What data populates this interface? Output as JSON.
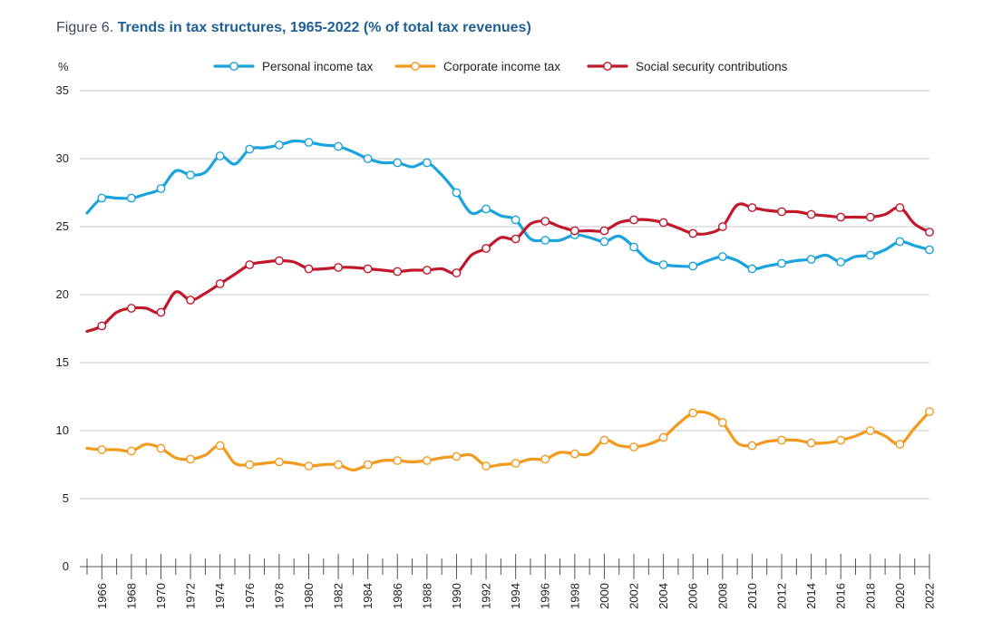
{
  "figure": {
    "label": "Figure 6.",
    "title": "Trends in tax structures, 1965-2022 (% of total tax revenues)"
  },
  "chart_data": {
    "type": "line",
    "title": "Trends in tax structures, 1965-2022 (% of total tax revenues)",
    "ylabel": "%",
    "xlabel": "",
    "ylim": [
      0,
      35
    ],
    "yticks": [
      0,
      5,
      10,
      15,
      20,
      25,
      30,
      35
    ],
    "xlim": [
      1965,
      2022
    ],
    "xticks": [
      1966,
      1968,
      1970,
      1972,
      1974,
      1976,
      1978,
      1980,
      1982,
      1984,
      1986,
      1988,
      1990,
      1992,
      1994,
      1996,
      1998,
      2000,
      2002,
      2004,
      2006,
      2008,
      2010,
      2012,
      2014,
      2016,
      2018,
      2020,
      2022
    ],
    "grid": "horizontal",
    "legend": "top",
    "x": [
      1965,
      1966,
      1967,
      1968,
      1969,
      1970,
      1971,
      1972,
      1973,
      1974,
      1975,
      1976,
      1977,
      1978,
      1979,
      1980,
      1981,
      1982,
      1983,
      1984,
      1985,
      1986,
      1987,
      1988,
      1989,
      1990,
      1991,
      1992,
      1993,
      1994,
      1995,
      1996,
      1997,
      1998,
      1999,
      2000,
      2001,
      2002,
      2003,
      2004,
      2005,
      2006,
      2007,
      2008,
      2009,
      2010,
      2011,
      2012,
      2013,
      2014,
      2015,
      2016,
      2017,
      2018,
      2019,
      2020,
      2021,
      2022
    ],
    "markers_every": 2,
    "series": [
      {
        "name": "Personal income tax",
        "color": "#1aa3dc",
        "values": [
          26.0,
          27.1,
          27.1,
          27.1,
          27.4,
          27.8,
          29.1,
          28.8,
          29.0,
          30.2,
          29.6,
          30.7,
          30.8,
          31.0,
          31.3,
          31.2,
          31.0,
          30.9,
          30.5,
          30.0,
          29.7,
          29.7,
          29.4,
          29.7,
          28.8,
          27.5,
          26.0,
          26.3,
          25.8,
          25.5,
          24.1,
          24.0,
          24.0,
          24.4,
          24.2,
          23.9,
          24.3,
          23.5,
          22.5,
          22.2,
          22.1,
          22.1,
          22.5,
          22.8,
          22.5,
          21.9,
          22.1,
          22.3,
          22.5,
          22.6,
          22.9,
          22.4,
          22.8,
          22.9,
          23.3,
          23.9,
          23.6,
          23.3
        ]
      },
      {
        "name": "Corporate income tax",
        "color": "#f29a1d",
        "values": [
          8.7,
          8.6,
          8.6,
          8.5,
          9.0,
          8.7,
          8.0,
          7.9,
          8.2,
          8.9,
          7.6,
          7.5,
          7.6,
          7.7,
          7.6,
          7.4,
          7.5,
          7.5,
          7.1,
          7.5,
          7.8,
          7.8,
          7.7,
          7.8,
          8.0,
          8.1,
          8.2,
          7.4,
          7.5,
          7.6,
          7.9,
          7.9,
          8.4,
          8.3,
          8.3,
          9.3,
          8.9,
          8.8,
          9.0,
          9.5,
          10.5,
          11.3,
          11.3,
          10.6,
          9.1,
          8.9,
          9.2,
          9.3,
          9.3,
          9.1,
          9.1,
          9.3,
          9.6,
          10.0,
          9.6,
          9.0,
          10.2,
          11.4
        ]
      },
      {
        "name": "Social security contributions",
        "color": "#c0182c",
        "values": [
          17.3,
          17.7,
          18.7,
          19.0,
          19.0,
          18.7,
          20.2,
          19.6,
          20.1,
          20.8,
          21.5,
          22.2,
          22.4,
          22.5,
          22.4,
          21.9,
          21.9,
          22.0,
          22.0,
          21.9,
          21.8,
          21.7,
          21.8,
          21.8,
          21.9,
          21.6,
          22.9,
          23.4,
          24.2,
          24.1,
          25.2,
          25.4,
          25.0,
          24.7,
          24.7,
          24.7,
          25.3,
          25.5,
          25.5,
          25.3,
          24.9,
          24.5,
          24.5,
          25.0,
          26.6,
          26.4,
          26.2,
          26.1,
          26.1,
          25.9,
          25.8,
          25.7,
          25.7,
          25.7,
          25.9,
          26.4,
          25.2,
          24.6
        ]
      }
    ]
  }
}
